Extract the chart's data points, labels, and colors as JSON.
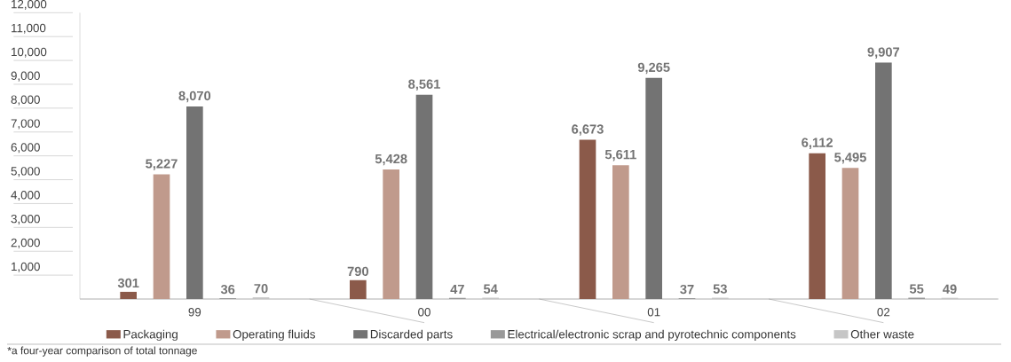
{
  "chart_data": {
    "type": "bar",
    "categories": [
      "99",
      "00",
      "01",
      "02"
    ],
    "series": [
      {
        "name": "Packaging",
        "color": "#8b5a4a",
        "values": [
          301,
          790,
          6673,
          6112
        ],
        "value_labels": [
          "301",
          "790",
          "6,673",
          "6,112"
        ]
      },
      {
        "name": "Operating fluids",
        "color": "#c09a8c",
        "values": [
          5227,
          5428,
          5611,
          5495
        ],
        "value_labels": [
          "5,227",
          "5,428",
          "5,611",
          "5,495"
        ]
      },
      {
        "name": "Discarded parts",
        "color": "#737373",
        "values": [
          8070,
          8561,
          9265,
          9907
        ],
        "value_labels": [
          "8,070",
          "8,561",
          "9,265",
          "9,907"
        ]
      },
      {
        "name": "Electrical/electronic scrap and pyrotechnic components",
        "color": "#999999",
        "values": [
          36,
          47,
          37,
          55
        ],
        "value_labels": [
          "36",
          "47",
          "37",
          "55"
        ]
      },
      {
        "name": "Other waste",
        "color": "#c6c6c6",
        "values": [
          70,
          54,
          53,
          49
        ],
        "value_labels": [
          "70",
          "54",
          "53",
          "49"
        ]
      }
    ],
    "ylim": [
      0,
      12000
    ],
    "yticks": [
      {
        "value": 1000,
        "label": "1,000"
      },
      {
        "value": 2000,
        "label": "2,000"
      },
      {
        "value": 3000,
        "label": "3,000"
      },
      {
        "value": 4000,
        "label": "4,000"
      },
      {
        "value": 5000,
        "label": "5,000"
      },
      {
        "value": 6000,
        "label": "6,000"
      },
      {
        "value": 7000,
        "label": "7,000"
      },
      {
        "value": 8000,
        "label": "8,000"
      },
      {
        "value": 9000,
        "label": "9,000"
      },
      {
        "value": 10000,
        "label": "10,000"
      },
      {
        "value": 11000,
        "label": "11,000"
      },
      {
        "value": 12000,
        "label": "12,000"
      }
    ],
    "legend": "bottom",
    "grid": false,
    "annotations": [
      "*a four-year comparison of total tonnage"
    ]
  }
}
